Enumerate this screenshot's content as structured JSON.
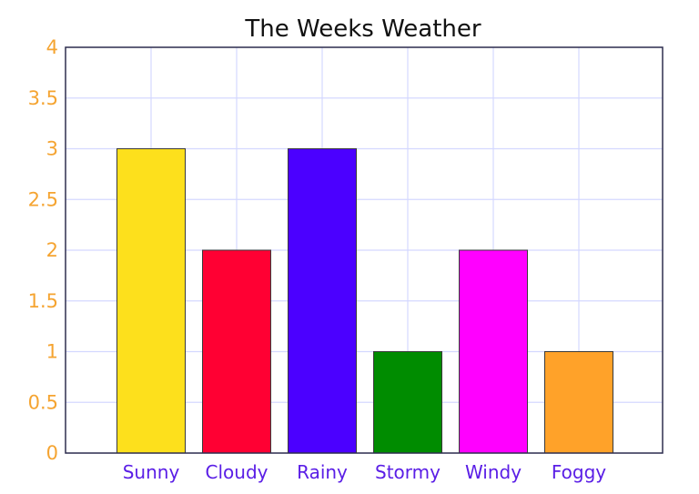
{
  "chart_data": {
    "type": "bar",
    "title": "The Weeks Weather",
    "xlabel": "",
    "ylabel": "",
    "categories": [
      "Sunny",
      "Cloudy",
      "Rainy",
      "Stormy",
      "Windy",
      "Foggy"
    ],
    "values": [
      3,
      2,
      3,
      1,
      2,
      1
    ],
    "colors": [
      "#fde01c",
      "#ff0033",
      "#4b00ff",
      "#008c00",
      "#ff00ff",
      "#ffa229"
    ],
    "ylim": [
      0,
      4
    ],
    "yticks": [
      "0",
      "0.5",
      "1",
      "1.5",
      "2",
      "2.5",
      "3",
      "3.5",
      "4"
    ],
    "grid": true,
    "legend": "none",
    "style": {
      "ytick_color": "#f5a431",
      "xtick_color": "#5a1ee6",
      "grid_color": "#d4d8ff",
      "axis_color": "#2e2e4e",
      "bar_edge_color": "#3a3a3a"
    }
  }
}
